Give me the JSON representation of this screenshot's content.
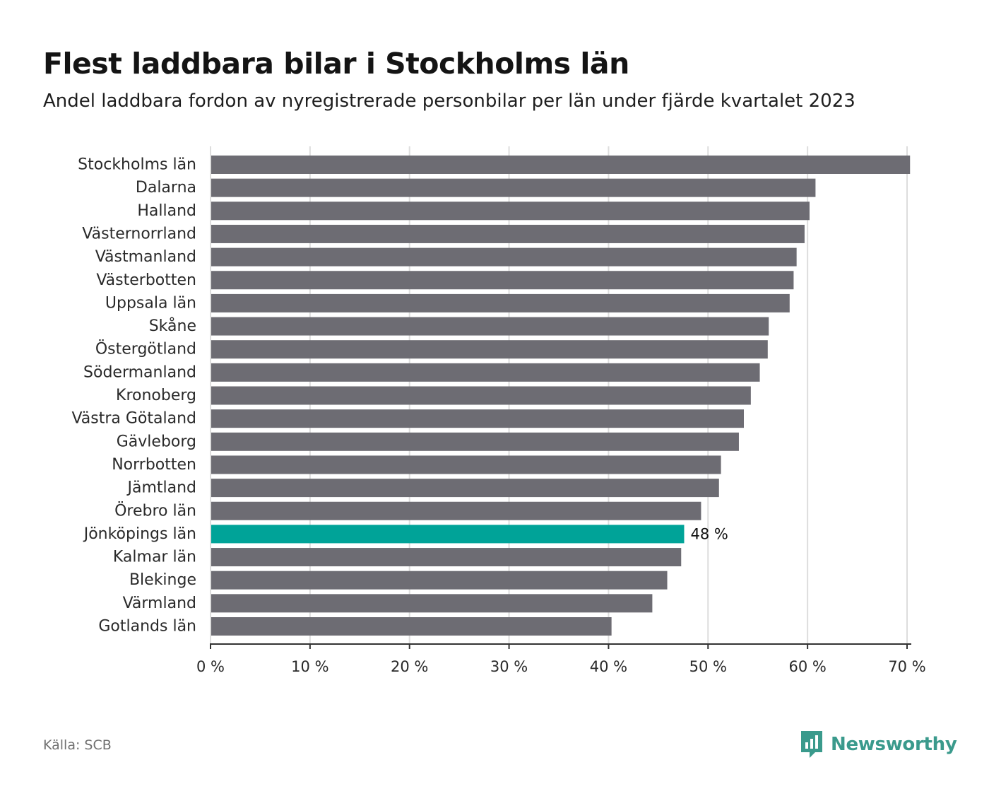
{
  "title": "Flest laddbara bilar i Stockholms län",
  "subtitle": "Andel laddbara fordon av nyregistrerade personbilar per län under fjärde kvartalet 2023",
  "source": "Källa: SCB",
  "brand": "Newsworthy",
  "colors": {
    "bar": "#6d6c73",
    "highlight": "#00a398",
    "grid": "#dddddd",
    "axis": "#333333",
    "brand": "#3a9a8c"
  },
  "chart_data": {
    "type": "bar",
    "orientation": "horizontal",
    "title": "Flest laddbara bilar i Stockholms län",
    "xlabel": "",
    "ylabel": "",
    "xlim": [
      0,
      70
    ],
    "x_ticks": [
      0,
      10,
      20,
      30,
      40,
      50,
      60,
      70
    ],
    "x_tick_labels": [
      "0 %",
      "10 %",
      "20 %",
      "30 %",
      "40 %",
      "50 %",
      "60 %",
      "70 %"
    ],
    "grid": true,
    "categories": [
      "Stockholms län",
      "Dalarna",
      "Halland",
      "Västernorrland",
      "Västmanland",
      "Västerbotten",
      "Uppsala län",
      "Skåne",
      "Östergötland",
      "Södermanland",
      "Kronoberg",
      "Västra Götaland",
      "Gävleborg",
      "Norrbotten",
      "Jämtland",
      "Örebro län",
      "Jönköpings län",
      "Kalmar län",
      "Blekinge",
      "Värmland",
      "Gotlands län"
    ],
    "values": [
      70.3,
      60.8,
      60.2,
      59.7,
      58.9,
      58.6,
      58.2,
      56.1,
      56.0,
      55.2,
      54.3,
      53.6,
      53.1,
      51.3,
      51.1,
      49.3,
      47.6,
      47.3,
      45.9,
      44.4,
      40.3
    ],
    "highlight": {
      "category": "Jönköpings län",
      "label": "48 %"
    }
  }
}
